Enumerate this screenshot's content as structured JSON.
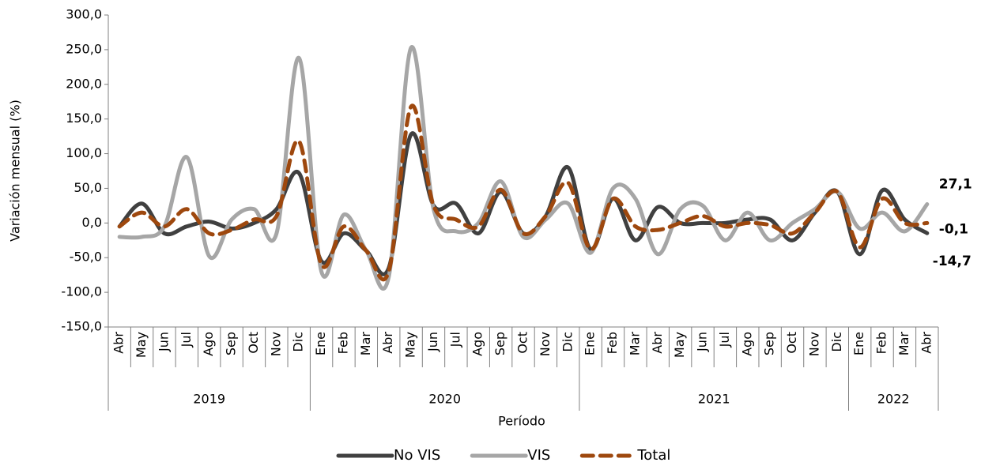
{
  "chart_data": {
    "type": "line",
    "y_label": "Variación mensual (%)",
    "x_label": "Período",
    "categories": [
      "Abr",
      "May",
      "Jun",
      "Jul",
      "Ago",
      "Sep",
      "Oct",
      "Nov",
      "Dic",
      "Ene",
      "Feb",
      "Mar",
      "Abr",
      "May",
      "Jun",
      "Jul",
      "Ago",
      "Sep",
      "Oct",
      "Nov",
      "Dic",
      "Ene",
      "Feb",
      "Mar",
      "Abr",
      "May",
      "Jun",
      "Jul",
      "Ago",
      "Sep",
      "Oct",
      "Nov",
      "Dic",
      "Ene",
      "Feb",
      "Mar",
      "Abr"
    ],
    "years": [
      "2019",
      null,
      null,
      null,
      null,
      null,
      null,
      null,
      null,
      "2020",
      null,
      null,
      null,
      null,
      null,
      null,
      null,
      null,
      null,
      null,
      null,
      "2021",
      null,
      null,
      null,
      null,
      null,
      null,
      null,
      null,
      null,
      null,
      null,
      "2022",
      null,
      null,
      null
    ],
    "ylim": [
      -150,
      300
    ],
    "yticks": [
      {
        "value": -150,
        "label": "-150,0"
      },
      {
        "value": -100,
        "label": "-100,0"
      },
      {
        "value": -50,
        "label": "-50,0"
      },
      {
        "value": 0,
        "label": "0,0"
      },
      {
        "value": 50,
        "label": "50,0"
      },
      {
        "value": 100,
        "label": "100,0"
      },
      {
        "value": 150,
        "label": "150,0"
      },
      {
        "value": 200,
        "label": "200,0"
      },
      {
        "value": 250,
        "label": "250,0"
      },
      {
        "value": 300,
        "label": "300,0"
      }
    ],
    "series": [
      {
        "name": "No VIS",
        "color": "#404040",
        "dashed": false,
        "values": [
          -5,
          28,
          -15,
          -5,
          2,
          -8,
          0,
          20,
          72,
          -55,
          -15,
          -40,
          -65,
          128,
          25,
          28,
          -15,
          45,
          -15,
          10,
          80,
          -38,
          35,
          -25,
          23,
          0,
          0,
          0,
          5,
          5,
          -25,
          15,
          45,
          -45,
          47,
          5,
          -14.7
        ],
        "value_labels": [
          null,
          null,
          null,
          null,
          null,
          null,
          null,
          null,
          null,
          null,
          null,
          null,
          null,
          null,
          null,
          null,
          null,
          null,
          null,
          null,
          null,
          null,
          null,
          null,
          null,
          null,
          null,
          null,
          null,
          null,
          null,
          null,
          null,
          null,
          null,
          null,
          "-14,7"
        ]
      },
      {
        "name": "VIS",
        "color": "#a6a6a6",
        "dashed": false,
        "values": [
          -20,
          -20,
          -5,
          95,
          -48,
          5,
          20,
          -15,
          238,
          -70,
          12,
          -40,
          -78,
          253,
          20,
          -12,
          0,
          60,
          -20,
          5,
          28,
          -43,
          50,
          35,
          -45,
          20,
          25,
          -25,
          15,
          -25,
          0,
          20,
          45,
          -8,
          15,
          -12,
          27.1
        ],
        "value_labels": [
          null,
          null,
          null,
          null,
          null,
          null,
          null,
          null,
          null,
          null,
          null,
          null,
          null,
          null,
          null,
          null,
          null,
          null,
          null,
          null,
          null,
          null,
          null,
          null,
          null,
          null,
          null,
          null,
          null,
          null,
          null,
          null,
          null,
          null,
          null,
          null,
          "27,1"
        ]
      },
      {
        "name": "Total",
        "color": "#9e480e",
        "dashed": true,
        "values": [
          -5,
          15,
          -5,
          20,
          -15,
          -10,
          5,
          10,
          118,
          -60,
          -5,
          -40,
          -70,
          168,
          25,
          5,
          -5,
          48,
          -15,
          10,
          58,
          -38,
          35,
          -5,
          -10,
          0,
          10,
          -5,
          0,
          -3,
          -15,
          15,
          45,
          -35,
          35,
          0,
          -0.1
        ],
        "value_labels": [
          null,
          null,
          null,
          null,
          null,
          null,
          null,
          null,
          null,
          null,
          null,
          null,
          null,
          null,
          null,
          null,
          null,
          null,
          null,
          null,
          null,
          null,
          null,
          null,
          null,
          null,
          null,
          null,
          null,
          null,
          null,
          null,
          null,
          null,
          null,
          null,
          "-0,1"
        ]
      }
    ]
  }
}
